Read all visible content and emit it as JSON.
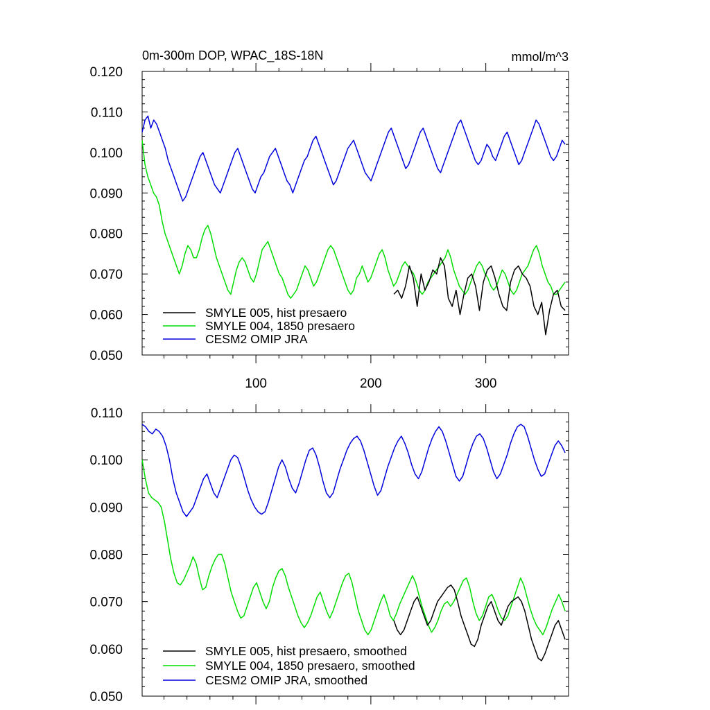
{
  "chart_data": [
    {
      "type": "line",
      "title_left": "0m-300m DOP, WPAC_18S-18N",
      "title_right": "mmol/m^3",
      "xlim": [
        1,
        372
      ],
      "ylim": [
        0.05,
        0.12
      ],
      "y_ticks": [
        "0.050",
        "0.060",
        "0.070",
        "0.080",
        "0.090",
        "0.100",
        "0.110",
        "0.120"
      ],
      "x_ticks": [
        "100",
        "200",
        "300"
      ],
      "legend": [
        "SMYLE 005, hist presaero",
        "SMYLE 004, 1850 presaero",
        "CESM2 OMIP JRA"
      ],
      "series": [
        {
          "name": "SMYLE 005, hist presaero",
          "color": "#000000",
          "x_start": 220,
          "values": [
            0.065,
            0.066,
            0.064,
            0.067,
            0.072,
            0.069,
            0.062,
            0.07,
            0.066,
            0.068,
            0.071,
            0.07,
            0.074,
            0.072,
            0.064,
            0.062,
            0.066,
            0.06,
            0.065,
            0.069,
            0.07,
            0.067,
            0.061,
            0.068,
            0.071,
            0.072,
            0.069,
            0.065,
            0.062,
            0.061,
            0.068,
            0.071,
            0.072,
            0.07,
            0.069,
            0.067,
            0.062,
            0.06,
            0.063,
            0.055,
            0.061,
            0.065,
            0.066,
            0.062,
            0.061
          ]
        },
        {
          "name": "SMYLE 004, 1850 presaero",
          "color": "#00dd00",
          "values": [
            0.103,
            0.097,
            0.094,
            0.092,
            0.09,
            0.089,
            0.087,
            0.083,
            0.08,
            0.078,
            0.076,
            0.074,
            0.072,
            0.07,
            0.072,
            0.075,
            0.077,
            0.076,
            0.074,
            0.074,
            0.076,
            0.079,
            0.081,
            0.082,
            0.08,
            0.077,
            0.074,
            0.072,
            0.07,
            0.068,
            0.066,
            0.065,
            0.068,
            0.071,
            0.073,
            0.074,
            0.073,
            0.071,
            0.069,
            0.068,
            0.07,
            0.073,
            0.076,
            0.077,
            0.078,
            0.076,
            0.074,
            0.072,
            0.07,
            0.069,
            0.067,
            0.065,
            0.064,
            0.065,
            0.066,
            0.068,
            0.07,
            0.072,
            0.071,
            0.069,
            0.067,
            0.068,
            0.07,
            0.072,
            0.074,
            0.076,
            0.077,
            0.076,
            0.074,
            0.072,
            0.07,
            0.068,
            0.066,
            0.065,
            0.066,
            0.069,
            0.07,
            0.072,
            0.07,
            0.068,
            0.069,
            0.071,
            0.073,
            0.075,
            0.076,
            0.074,
            0.071,
            0.069,
            0.067,
            0.068,
            0.07,
            0.072,
            0.073,
            0.072,
            0.071,
            0.07,
            0.068,
            0.066,
            0.065,
            0.066,
            0.068,
            0.069,
            0.07,
            0.071,
            0.072,
            0.073,
            0.074,
            0.076,
            0.074,
            0.071,
            0.069,
            0.067,
            0.066,
            0.065,
            0.066,
            0.068,
            0.07,
            0.072,
            0.073,
            0.072,
            0.07,
            0.069,
            0.067,
            0.066,
            0.067,
            0.069,
            0.071,
            0.07,
            0.068,
            0.066,
            0.065,
            0.066,
            0.068,
            0.07,
            0.071,
            0.072,
            0.074,
            0.076,
            0.077,
            0.075,
            0.072,
            0.07,
            0.068,
            0.067,
            0.065,
            0.065,
            0.066,
            0.067,
            0.068
          ]
        },
        {
          "name": "CESM2 OMIP JRA",
          "color": "#0000dd",
          "values": [
            0.105,
            0.108,
            0.109,
            0.106,
            0.108,
            0.107,
            0.105,
            0.103,
            0.101,
            0.098,
            0.096,
            0.094,
            0.092,
            0.09,
            0.088,
            0.089,
            0.091,
            0.093,
            0.095,
            0.097,
            0.099,
            0.1,
            0.098,
            0.096,
            0.094,
            0.092,
            0.091,
            0.09,
            0.092,
            0.094,
            0.096,
            0.098,
            0.1,
            0.101,
            0.099,
            0.097,
            0.095,
            0.093,
            0.091,
            0.09,
            0.092,
            0.094,
            0.095,
            0.097,
            0.099,
            0.1,
            0.101,
            0.099,
            0.097,
            0.095,
            0.093,
            0.092,
            0.09,
            0.092,
            0.094,
            0.096,
            0.098,
            0.099,
            0.101,
            0.103,
            0.104,
            0.102,
            0.1,
            0.098,
            0.096,
            0.094,
            0.092,
            0.093,
            0.095,
            0.097,
            0.099,
            0.101,
            0.102,
            0.103,
            0.101,
            0.099,
            0.097,
            0.095,
            0.094,
            0.093,
            0.095,
            0.097,
            0.099,
            0.101,
            0.103,
            0.105,
            0.106,
            0.104,
            0.102,
            0.1,
            0.098,
            0.096,
            0.097,
            0.099,
            0.101,
            0.103,
            0.105,
            0.106,
            0.104,
            0.102,
            0.1,
            0.098,
            0.096,
            0.095,
            0.097,
            0.099,
            0.101,
            0.103,
            0.105,
            0.107,
            0.108,
            0.106,
            0.104,
            0.102,
            0.1,
            0.098,
            0.097,
            0.098,
            0.1,
            0.102,
            0.101,
            0.099,
            0.098,
            0.1,
            0.102,
            0.104,
            0.105,
            0.103,
            0.101,
            0.099,
            0.097,
            0.098,
            0.1,
            0.102,
            0.104,
            0.106,
            0.108,
            0.107,
            0.105,
            0.103,
            0.101,
            0.099,
            0.098,
            0.099,
            0.101,
            0.103,
            0.102
          ]
        }
      ]
    },
    {
      "type": "line",
      "xlim": [
        1,
        372
      ],
      "ylim": [
        0.05,
        0.11
      ],
      "y_ticks": [
        "0.050",
        "0.060",
        "0.070",
        "0.080",
        "0.090",
        "0.100",
        "0.110"
      ],
      "legend": [
        "SMYLE 005, hist presaero, smoothed",
        "SMYLE 004, 1850 presaero, smoothed",
        "CESM2 OMIP JRA, smoothed"
      ],
      "series": [
        {
          "name": "SMYLE 005, hist presaero, smoothed",
          "color": "#000000",
          "x_start": 220,
          "values": [
            0.066,
            0.064,
            0.063,
            0.064,
            0.066,
            0.068,
            0.07,
            0.071,
            0.069,
            0.067,
            0.065,
            0.066,
            0.068,
            0.07,
            0.071,
            0.072,
            0.073,
            0.0735,
            0.0725,
            0.07,
            0.067,
            0.065,
            0.063,
            0.061,
            0.0605,
            0.062,
            0.065,
            0.067,
            0.069,
            0.07,
            0.068,
            0.066,
            0.065,
            0.067,
            0.069,
            0.07,
            0.0705,
            0.071,
            0.07,
            0.068,
            0.065,
            0.062,
            0.06,
            0.058,
            0.0575,
            0.059,
            0.061,
            0.063,
            0.065,
            0.066,
            0.064,
            0.062
          ]
        },
        {
          "name": "SMYLE 004, 1850 presaero, smoothed",
          "color": "#00dd00",
          "values": [
            0.1,
            0.096,
            0.093,
            0.092,
            0.0915,
            0.091,
            0.09,
            0.087,
            0.083,
            0.079,
            0.076,
            0.074,
            0.0735,
            0.0745,
            0.076,
            0.0775,
            0.0795,
            0.078,
            0.075,
            0.0725,
            0.073,
            0.0755,
            0.0775,
            0.079,
            0.08,
            0.08,
            0.078,
            0.075,
            0.072,
            0.07,
            0.068,
            0.0665,
            0.067,
            0.069,
            0.071,
            0.073,
            0.074,
            0.072,
            0.07,
            0.0685,
            0.07,
            0.073,
            0.075,
            0.0765,
            0.077,
            0.0755,
            0.073,
            0.071,
            0.069,
            0.067,
            0.0655,
            0.0645,
            0.0655,
            0.067,
            0.069,
            0.071,
            0.072,
            0.07,
            0.068,
            0.0665,
            0.068,
            0.07,
            0.072,
            0.074,
            0.0755,
            0.076,
            0.074,
            0.071,
            0.068,
            0.066,
            0.064,
            0.063,
            0.064,
            0.066,
            0.068,
            0.07,
            0.0715,
            0.0695,
            0.067,
            0.066,
            0.0675,
            0.0695,
            0.071,
            0.0725,
            0.074,
            0.0755,
            0.074,
            0.0715,
            0.069,
            0.067,
            0.065,
            0.0635,
            0.0645,
            0.066,
            0.068,
            0.0695,
            0.07,
            0.069,
            0.07,
            0.0715,
            0.073,
            0.0745,
            0.075,
            0.073,
            0.07,
            0.0675,
            0.066,
            0.067,
            0.069,
            0.071,
            0.0715,
            0.07,
            0.068,
            0.0665,
            0.066,
            0.067,
            0.069,
            0.071,
            0.073,
            0.075,
            0.0735,
            0.071,
            0.0685,
            0.0665,
            0.065,
            0.064,
            0.063,
            0.0645,
            0.0665,
            0.0685,
            0.07,
            0.0715,
            0.07,
            0.068
          ]
        },
        {
          "name": "CESM2 OMIP JRA, smoothed",
          "color": "#0000dd",
          "values": [
            0.1075,
            0.107,
            0.106,
            0.1055,
            0.1065,
            0.106,
            0.105,
            0.103,
            0.1,
            0.096,
            0.093,
            0.091,
            0.089,
            0.088,
            0.089,
            0.09,
            0.092,
            0.094,
            0.096,
            0.097,
            0.095,
            0.093,
            0.092,
            0.094,
            0.096,
            0.098,
            0.1,
            0.101,
            0.1005,
            0.0985,
            0.096,
            0.0935,
            0.0915,
            0.09,
            0.089,
            0.0885,
            0.089,
            0.091,
            0.0935,
            0.096,
            0.0985,
            0.1,
            0.0985,
            0.096,
            0.094,
            0.093,
            0.095,
            0.0975,
            0.1,
            0.102,
            0.1025,
            0.101,
            0.0985,
            0.0955,
            0.093,
            0.092,
            0.093,
            0.0955,
            0.098,
            0.1,
            0.102,
            0.1035,
            0.1045,
            0.105,
            0.104,
            0.102,
            0.0995,
            0.097,
            0.0945,
            0.0925,
            0.0935,
            0.096,
            0.0985,
            0.1005,
            0.1025,
            0.104,
            0.105,
            0.1035,
            0.1015,
            0.099,
            0.097,
            0.096,
            0.0975,
            0.1,
            0.1025,
            0.1045,
            0.106,
            0.107,
            0.106,
            0.104,
            0.1015,
            0.099,
            0.0965,
            0.0955,
            0.0965,
            0.099,
            0.1015,
            0.1035,
            0.105,
            0.1055,
            0.1045,
            0.1025,
            0.1,
            0.0975,
            0.096,
            0.097,
            0.099,
            0.101,
            0.1035,
            0.1055,
            0.107,
            0.1075,
            0.107,
            0.105,
            0.1025,
            0.1,
            0.098,
            0.0965,
            0.097,
            0.099,
            0.101,
            0.103,
            0.104,
            0.103,
            0.1015
          ]
        }
      ]
    }
  ]
}
